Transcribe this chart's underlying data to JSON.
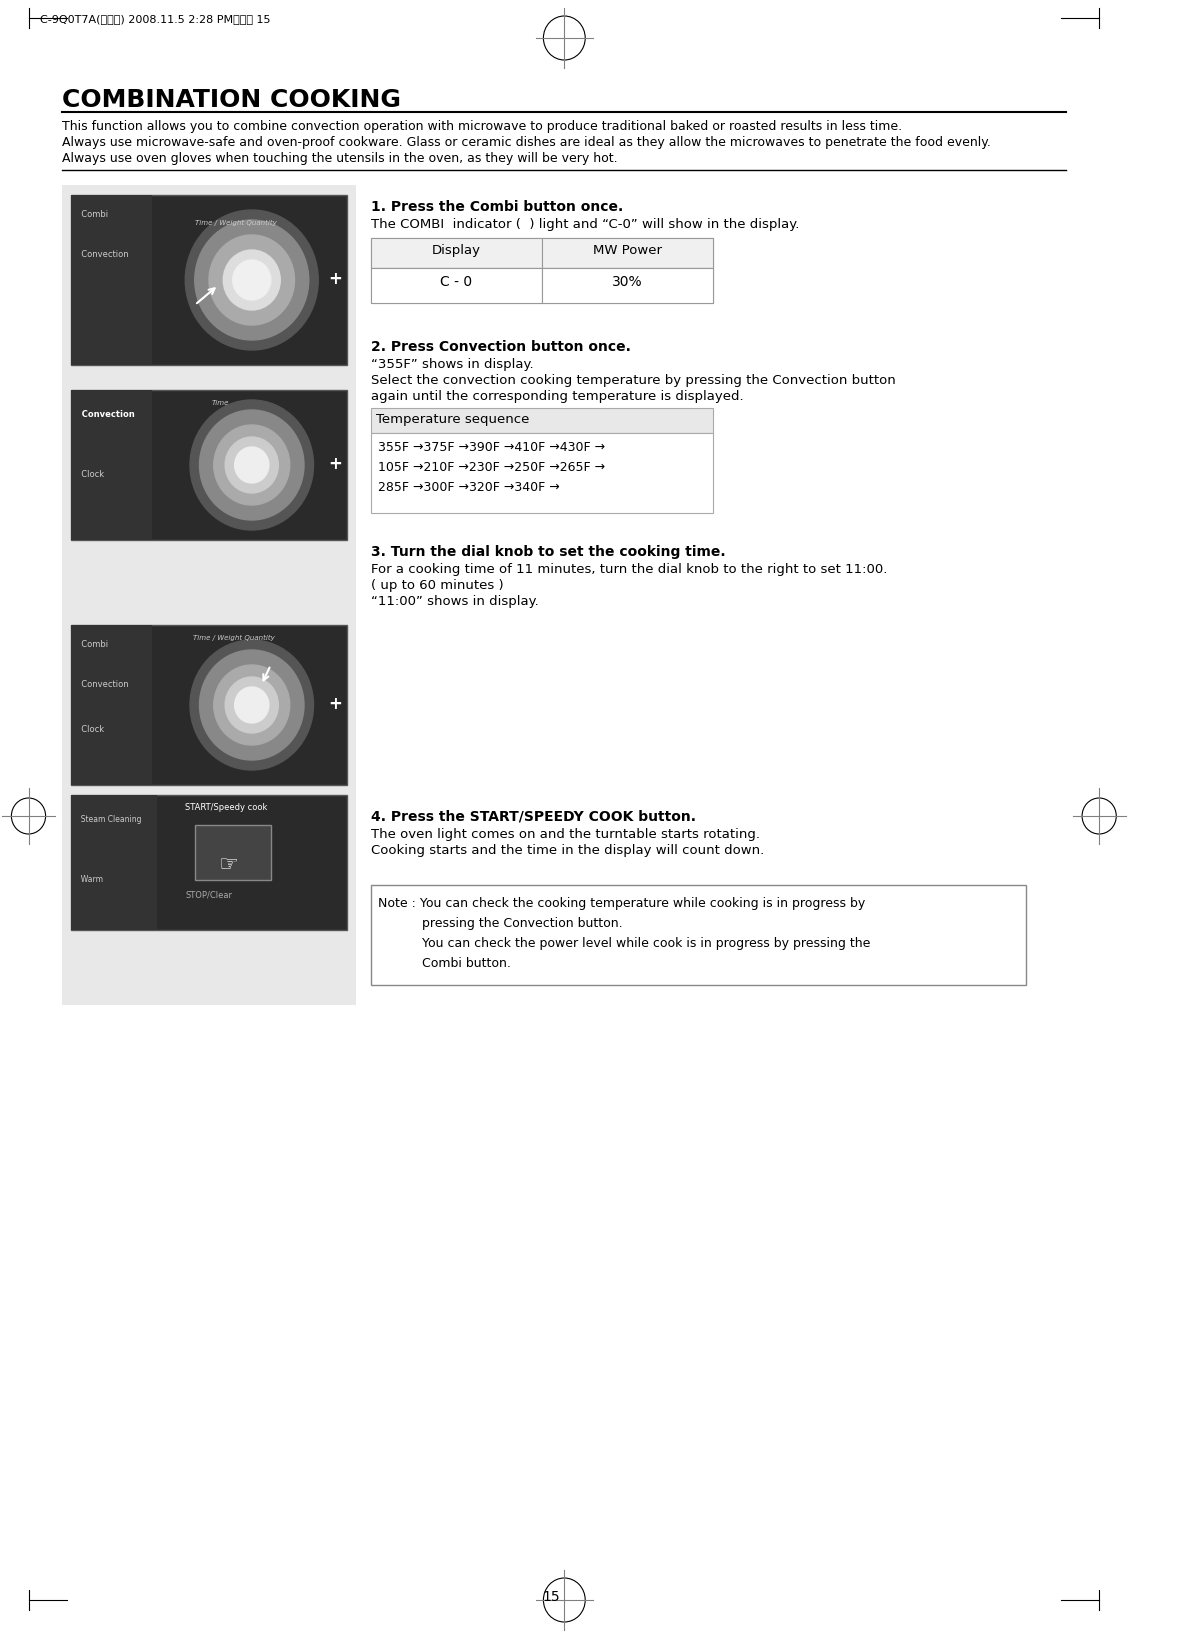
{
  "page_header": "C-9Q0T7A(영기본) 2008.11.5 2:28 PM페이지 15",
  "page_number": "15",
  "title": "COMBINATION COOKING",
  "intro_lines": [
    "This function allows you to combine convection operation with microwave to produce traditional baked or roasted results in less time.",
    "Always use microwave-safe and oven-proof cookware. Glass or ceramic dishes are ideal as they allow the microwaves to penetrate the food evenly.",
    "Always use oven gloves when touching the utensils in the oven, as they will be very hot."
  ],
  "step1_bold": "1. Press the Combi button once.",
  "step1_text": "The COMBI  indicator (  ) light and “C-0” will show in the display.",
  "table1_headers": [
    "Display",
    "MW Power"
  ],
  "table1_row": [
    "C - 0",
    "30%"
  ],
  "step2_bold": "2. Press Convection button once.",
  "step2_lines": [
    "“355F” shows in display.",
    "Select the convection cooking temperature by pressing the Convection button",
    "again until the corresponding temperature is displayed."
  ],
  "temp_seq_header": "Temperature sequence",
  "temp_seq_lines": [
    "355F →375F →390F →410F →430F →",
    "105F →210F →230F →250F →265F →",
    "285F →300F →320F →340F →"
  ],
  "step3_bold": "3. Turn the dial knob to set the cooking time.",
  "step3_lines": [
    "For a cooking time of 11 minutes, turn the dial knob to the right to set 11:00.",
    "( up to 60 minutes )",
    "“11:00” shows in display."
  ],
  "step4_bold": "4. Press the START/SPEEDY COOK button.",
  "step4_lines": [
    "The oven light comes on and the turntable starts rotating.",
    "Cooking starts and the time in the display will count down."
  ],
  "note_lines": [
    "Note : You can check the cooking temperature while cooking is in progress by",
    "           pressing the Convection button.",
    "           You can check the power level while cook is in progress by pressing the",
    "           Combi button."
  ],
  "bg_color": "#ffffff",
  "text_color": "#000000",
  "gray_bg": "#e8e8e8",
  "table_border": "#999999",
  "note_border": "#888888"
}
